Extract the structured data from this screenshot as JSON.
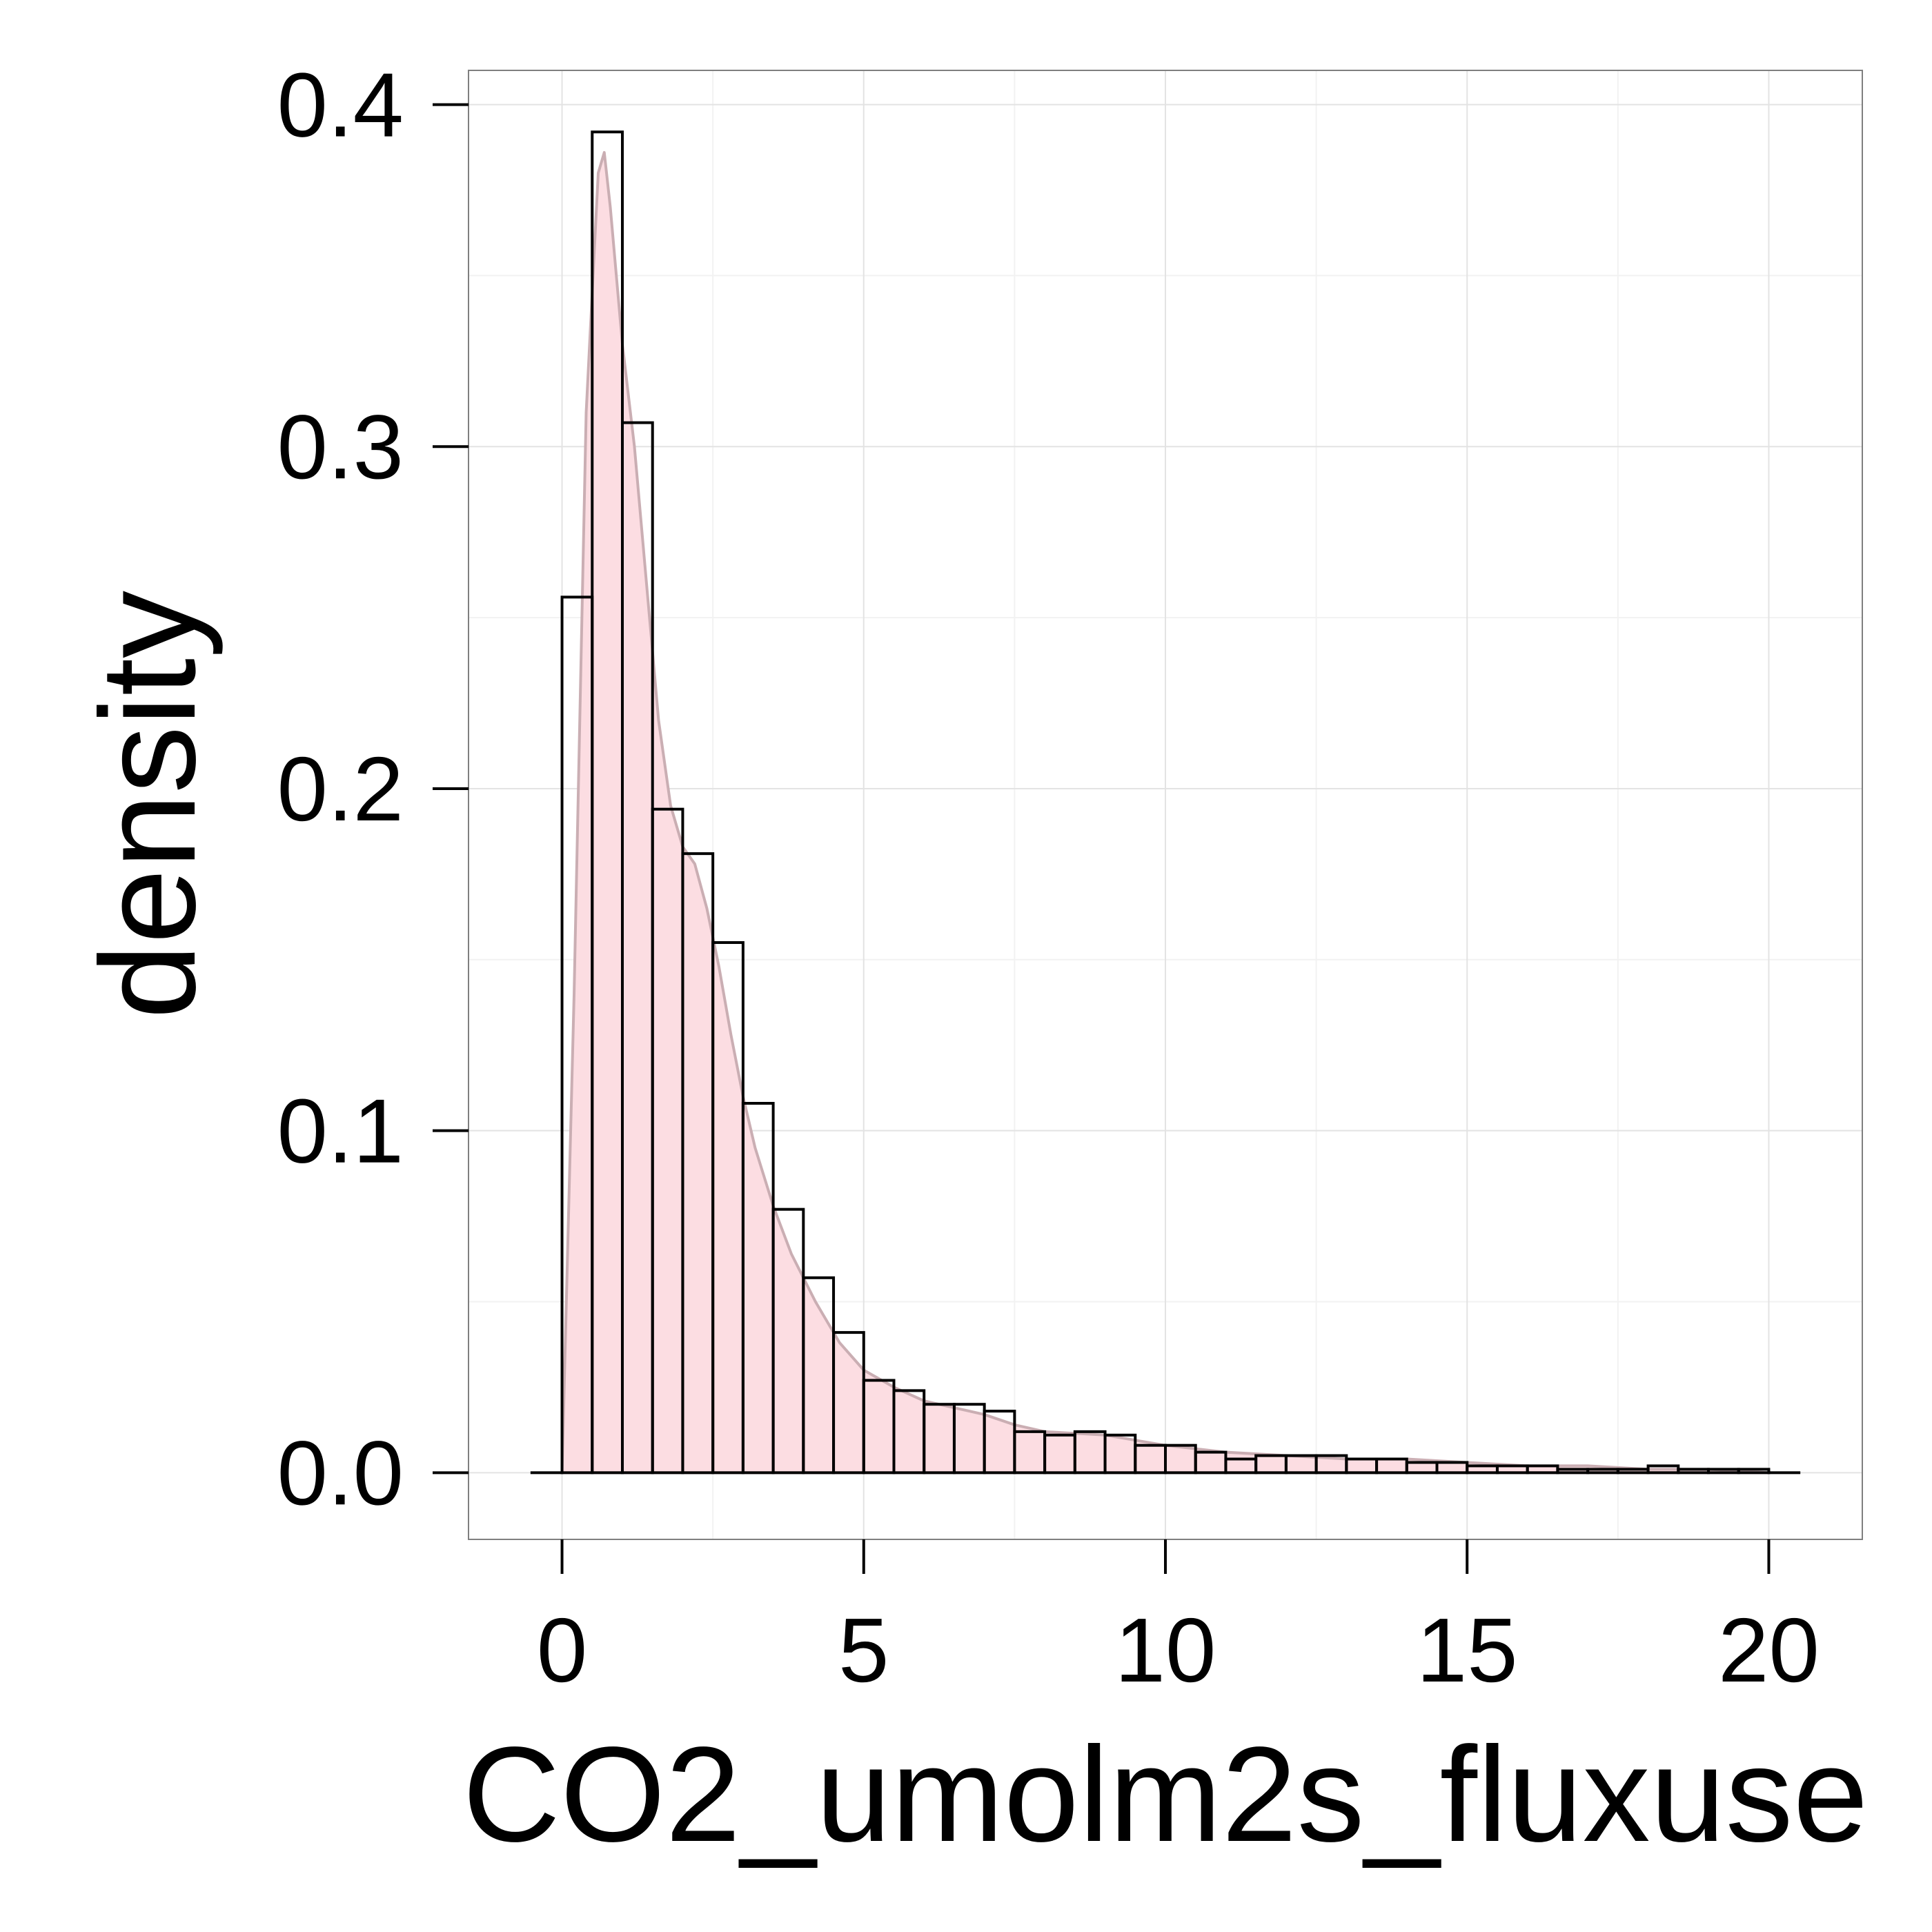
{
  "chart_data": {
    "type": "bar",
    "xlabel": "CO2_umolm2s_fluxuse",
    "ylabel": "density",
    "xlim": [
      -1.55,
      21.55
    ],
    "ylim": [
      -0.0195,
      0.41
    ],
    "x_ticks": [
      0,
      5,
      10,
      15,
      20
    ],
    "x_tick_labels": [
      "0",
      "5",
      "10",
      "15",
      "20"
    ],
    "y_ticks": [
      0.0,
      0.1,
      0.2,
      0.3,
      0.4
    ],
    "y_tick_labels": [
      "0.0",
      "0.1",
      "0.2",
      "0.3",
      "0.4"
    ],
    "grid": true,
    "bin_width": 0.5,
    "bins": {
      "x_start": [
        -0.5,
        0.0,
        0.5,
        1.0,
        1.5,
        2.0,
        2.5,
        3.0,
        3.5,
        4.0,
        4.5,
        5.0,
        5.5,
        6.0,
        6.5,
        7.0,
        7.5,
        8.0,
        8.5,
        9.0,
        9.5,
        10.0,
        10.5,
        11.0,
        11.5,
        12.0,
        12.5,
        13.0,
        13.5,
        14.0,
        14.5,
        15.0,
        15.5,
        16.0,
        16.5,
        17.0,
        17.5,
        18.0,
        18.5,
        19.0,
        19.5,
        20.0
      ],
      "density": [
        0.0,
        0.256,
        0.392,
        0.307,
        0.194,
        0.181,
        0.155,
        0.108,
        0.077,
        0.057,
        0.041,
        0.027,
        0.024,
        0.02,
        0.02,
        0.018,
        0.012,
        0.011,
        0.012,
        0.011,
        0.008,
        0.008,
        0.006,
        0.004,
        0.005,
        0.005,
        0.005,
        0.004,
        0.004,
        0.003,
        0.003,
        0.002,
        0.002,
        0.002,
        0.001,
        0.001,
        0.001,
        0.002,
        0.001,
        0.001,
        0.001,
        0.0
      ]
    },
    "density_curve": {
      "x": [
        0.0,
        0.2,
        0.4,
        0.6,
        0.7,
        0.8,
        1.0,
        1.2,
        1.4,
        1.6,
        1.8,
        2.0,
        2.2,
        2.4,
        2.6,
        2.8,
        3.0,
        3.2,
        3.5,
        3.8,
        4.2,
        4.6,
        5.0,
        5.5,
        6.0,
        6.5,
        7.0,
        7.5,
        8.0,
        9.0,
        10.0,
        11.0,
        12.0,
        13.0,
        14.0,
        15.0,
        16.0,
        17.0,
        18.0,
        19.0,
        20.0
      ],
      "y": [
        0.0,
        0.14,
        0.31,
        0.38,
        0.386,
        0.37,
        0.33,
        0.3,
        0.26,
        0.22,
        0.195,
        0.183,
        0.178,
        0.165,
        0.148,
        0.128,
        0.11,
        0.095,
        0.078,
        0.064,
        0.05,
        0.038,
        0.03,
        0.025,
        0.021,
        0.019,
        0.017,
        0.014,
        0.012,
        0.011,
        0.008,
        0.006,
        0.005,
        0.004,
        0.004,
        0.003,
        0.002,
        0.002,
        0.001,
        0.001,
        0.0
      ]
    },
    "colors": {
      "fill": "#fcdde2",
      "curve_stroke": "#caaeb3",
      "bar_stroke": "#000000",
      "panel_border": "#7f7f7f",
      "grid_major": "#e3e3e3",
      "grid_minor": "#f2f2f2"
    }
  }
}
